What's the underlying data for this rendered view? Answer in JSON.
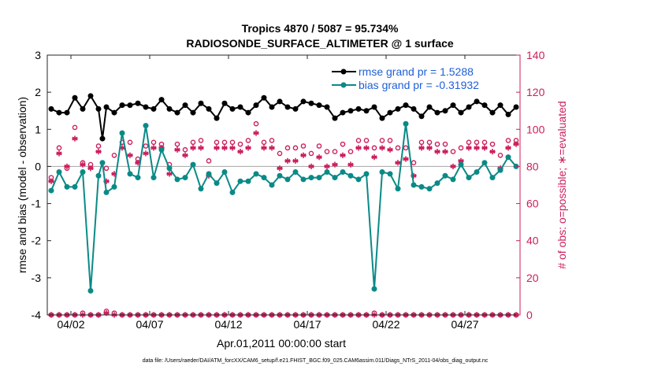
{
  "chart_data": {
    "type": "line",
    "title_line1": "Tropics 4870 / 5087 = 95.734%",
    "title_line2": "RADIOSONDE_SURFACE_ALTIMETER @ 1 surface",
    "xlabel": "Apr.01,2011 00:00:00 start",
    "ylabel_left": "rmse and bias (model - observation)",
    "ylabel_right": "# of obs: o=possible; ∗=evaluated",
    "footer": "data file: /Users/raeder/DAI/ATM_forcXX/CAM6_setup/f.e21.FHIST_BGC.f09_025.CAM6assim.011/Diags_NTrS_2011-04/obs_diag_output.nc",
    "xlim": [
      0.5,
      30.5
    ],
    "ylim_left": [
      -4,
      3
    ],
    "ylim_right": [
      0,
      140
    ],
    "x_ticks": [
      2,
      7,
      12,
      17,
      22,
      27
    ],
    "x_tick_labels": [
      "04/02",
      "04/07",
      "04/12",
      "04/17",
      "04/22",
      "04/27"
    ],
    "y_ticks_left": [
      -4,
      -3,
      -2,
      -1,
      0,
      1,
      2,
      3
    ],
    "y_ticks_right": [
      0,
      20,
      40,
      60,
      80,
      100,
      120,
      140
    ],
    "legend": [
      {
        "name": "rmse grand pr = 1.5288",
        "color": "#000000"
      },
      {
        "name": "bias grand pr = -0.31932",
        "color": "#0a8a87"
      }
    ],
    "colors": {
      "rmse": "#000000",
      "bias": "#0a8a87",
      "obs": "#cc1e5c",
      "legend_text": "#1f5fd6",
      "zero_line": "#b0b0b0"
    },
    "series": [
      {
        "name": "rmse",
        "x": [
          0.75,
          1.25,
          1.75,
          2.25,
          2.75,
          3.25,
          3.75,
          4.0,
          4.25,
          4.75,
          5.25,
          5.75,
          6.25,
          6.75,
          7.25,
          7.75,
          8.25,
          8.75,
          9.25,
          9.75,
          10.25,
          10.75,
          11.25,
          11.75,
          12.25,
          12.75,
          13.25,
          13.75,
          14.25,
          14.75,
          15.25,
          15.75,
          16.25,
          16.75,
          17.25,
          17.75,
          18.25,
          18.75,
          19.25,
          19.75,
          20.25,
          20.75,
          21.25,
          21.75,
          22.25,
          22.75,
          23.25,
          23.75,
          24.25,
          24.75,
          25.25,
          25.75,
          26.25,
          26.75,
          27.25,
          27.75,
          28.25,
          28.75,
          29.25,
          29.75,
          30.25
        ],
        "values": [
          1.55,
          1.45,
          1.45,
          1.85,
          1.55,
          1.9,
          1.55,
          0.75,
          1.6,
          1.45,
          1.65,
          1.65,
          1.7,
          1.6,
          1.55,
          1.8,
          1.55,
          1.45,
          1.65,
          1.45,
          1.7,
          1.55,
          1.3,
          1.7,
          1.55,
          1.6,
          1.45,
          1.65,
          1.85,
          1.6,
          1.75,
          1.6,
          1.55,
          1.75,
          1.7,
          1.65,
          1.6,
          1.3,
          1.45,
          1.5,
          1.55,
          1.5,
          1.6,
          1.3,
          1.45,
          1.55,
          1.65,
          1.55,
          1.35,
          1.6,
          1.45,
          1.5,
          1.65,
          1.45,
          1.6,
          1.75,
          1.65,
          1.45,
          1.65,
          1.4,
          1.6
        ]
      },
      {
        "name": "bias",
        "x": [
          0.75,
          1.25,
          1.75,
          2.25,
          2.75,
          3.25,
          3.75,
          4.0,
          4.25,
          4.75,
          5.25,
          5.75,
          6.25,
          6.75,
          7.25,
          7.75,
          8.25,
          8.75,
          9.25,
          9.75,
          10.25,
          10.75,
          11.25,
          11.75,
          12.25,
          12.75,
          13.25,
          13.75,
          14.25,
          14.75,
          15.25,
          15.75,
          16.25,
          16.75,
          17.25,
          17.75,
          18.25,
          18.75,
          19.25,
          19.75,
          20.25,
          20.75,
          21.25,
          21.75,
          22.25,
          22.75,
          23.25,
          23.75,
          24.25,
          24.75,
          25.25,
          25.75,
          26.25,
          26.75,
          27.25,
          27.75,
          28.25,
          28.75,
          29.25,
          29.75,
          30.25
        ],
        "values": [
          -0.65,
          -0.15,
          -0.55,
          -0.55,
          -0.15,
          -3.35,
          -0.25,
          0.1,
          -0.7,
          -0.55,
          0.9,
          -0.2,
          -0.3,
          1.1,
          -0.3,
          0.45,
          -0.05,
          -0.35,
          -0.3,
          0.05,
          -0.6,
          -0.2,
          -0.45,
          -0.15,
          -0.7,
          -0.4,
          -0.4,
          -0.2,
          -0.3,
          -0.5,
          -0.25,
          -0.35,
          -0.15,
          -0.35,
          -0.3,
          -0.3,
          -0.15,
          -0.3,
          -0.15,
          -0.25,
          -0.35,
          -0.2,
          -3.3,
          -0.15,
          -0.2,
          -0.6,
          1.15,
          -0.5,
          -0.55,
          -0.6,
          -0.45,
          -0.25,
          -0.35,
          0.05,
          -0.3,
          -0.15,
          0.1,
          -0.3,
          -0.1,
          0.25,
          0.0
        ]
      },
      {
        "name": "possible",
        "x": [
          0.75,
          1.25,
          1.75,
          2.25,
          2.75,
          3.25,
          3.75,
          4.25,
          4.75,
          5.25,
          5.75,
          6.25,
          6.75,
          7.25,
          7.75,
          8.25,
          8.75,
          9.25,
          9.75,
          10.25,
          10.75,
          11.25,
          11.75,
          12.25,
          12.75,
          13.25,
          13.75,
          14.25,
          14.75,
          15.25,
          15.75,
          16.25,
          16.75,
          17.25,
          17.75,
          18.25,
          18.75,
          19.25,
          19.75,
          20.25,
          20.75,
          21.25,
          21.75,
          22.25,
          22.75,
          23.25,
          23.75,
          24.25,
          24.75,
          25.25,
          25.75,
          26.25,
          26.75,
          27.25,
          27.75,
          28.25,
          28.75,
          29.25,
          29.75,
          30.25
        ],
        "values": [
          74,
          90,
          79,
          101,
          82,
          81,
          91,
          79,
          86,
          93,
          93,
          84,
          91,
          93,
          92,
          81,
          92,
          89,
          93,
          94,
          83,
          93,
          93,
          93,
          92,
          94,
          103,
          93,
          94,
          87,
          90,
          90,
          91,
          87,
          91,
          88,
          88,
          92,
          88,
          94,
          94,
          90,
          94,
          94,
          90,
          90,
          82,
          93,
          93,
          92,
          92,
          88,
          90,
          93,
          93,
          93,
          92,
          86,
          94,
          94
        ]
      },
      {
        "name": "evaluated",
        "x": [
          0.75,
          1.25,
          1.75,
          2.25,
          2.75,
          3.25,
          3.75,
          4.25,
          4.75,
          5.25,
          5.75,
          6.25,
          6.75,
          7.25,
          7.75,
          8.25,
          8.75,
          9.25,
          9.75,
          10.25,
          10.75,
          11.25,
          11.75,
          12.25,
          12.75,
          13.25,
          13.75,
          14.25,
          14.75,
          15.25,
          15.75,
          16.25,
          16.75,
          17.25,
          17.75,
          18.25,
          18.75,
          19.25,
          19.75,
          20.25,
          20.75,
          21.25,
          21.75,
          22.25,
          22.75,
          23.25,
          23.75,
          24.25,
          24.75,
          25.25,
          25.75,
          26.25,
          26.75,
          27.25,
          27.75,
          28.25,
          28.75,
          29.25,
          29.75,
          30.25
        ],
        "values": [
          72,
          87,
          80,
          95,
          81,
          79,
          88,
          72,
          76,
          90,
          86,
          82,
          87,
          90,
          90,
          76,
          89,
          86,
          90,
          90,
          75,
          90,
          90,
          90,
          88,
          90,
          98,
          90,
          90,
          79,
          83,
          83,
          86,
          80,
          85,
          80,
          81,
          86,
          81,
          90,
          90,
          85,
          90,
          89,
          82,
          84,
          75,
          90,
          90,
          88,
          88,
          80,
          83,
          90,
          90,
          90,
          88,
          79,
          90,
          92
        ]
      },
      {
        "name": "possible_baseline",
        "x": [
          0.75,
          1.25,
          1.75,
          2.25,
          2.75,
          3.25,
          3.75,
          4.25,
          4.75,
          5.25,
          5.75,
          6.25,
          6.75,
          7.25,
          7.75,
          8.25,
          8.75,
          9.25,
          9.75,
          10.25,
          10.75,
          11.25,
          11.75,
          12.25,
          12.75,
          13.25,
          13.75,
          14.25,
          14.75,
          15.25,
          15.75,
          16.25,
          16.75,
          17.25,
          17.75,
          18.25,
          18.75,
          19.25,
          19.75,
          20.25,
          20.75,
          21.25,
          21.75,
          22.25,
          22.75,
          23.25,
          23.75,
          24.25,
          24.75,
          25.25,
          25.75,
          26.25,
          26.75,
          27.25,
          27.75,
          28.25,
          28.75,
          29.25,
          29.75,
          30.25
        ],
        "values": [
          0,
          0,
          0,
          0,
          1,
          0,
          0,
          2,
          1,
          0,
          0,
          0,
          0,
          0,
          0,
          0,
          0,
          0,
          0,
          0,
          0,
          0,
          0,
          0,
          0,
          0,
          0,
          0,
          0,
          0,
          0,
          0,
          0,
          0,
          0,
          0,
          0,
          0,
          0,
          0,
          0,
          1,
          0,
          0,
          0,
          0,
          0,
          0,
          0,
          0,
          0,
          0,
          0,
          0,
          0,
          0,
          0,
          0,
          0,
          0
        ]
      },
      {
        "name": "evaluated_baseline",
        "x": [
          0.75,
          1.25,
          1.75,
          2.25,
          2.75,
          3.25,
          3.75,
          4.25,
          4.75,
          5.25,
          5.75,
          6.25,
          6.75,
          7.25,
          7.75,
          8.25,
          8.75,
          9.25,
          9.75,
          10.25,
          10.75,
          11.25,
          11.75,
          12.25,
          12.75,
          13.25,
          13.75,
          14.25,
          14.75,
          15.25,
          15.75,
          16.25,
          16.75,
          17.25,
          17.75,
          18.25,
          18.75,
          19.25,
          19.75,
          20.25,
          20.75,
          21.25,
          21.75,
          22.25,
          22.75,
          23.25,
          23.75,
          24.25,
          24.75,
          25.25,
          25.75,
          26.25,
          26.75,
          27.25,
          27.75,
          28.25,
          28.75,
          29.25,
          29.75,
          30.25
        ],
        "values": [
          0,
          0,
          0,
          0,
          0,
          0,
          0,
          1,
          0,
          0,
          0,
          0,
          0,
          0,
          0,
          0,
          0,
          0,
          0,
          0,
          0,
          0,
          0,
          0,
          0,
          0,
          0,
          0,
          0,
          0,
          0,
          0,
          0,
          0,
          0,
          0,
          0,
          0,
          0,
          0,
          0,
          0,
          0,
          0,
          0,
          0,
          0,
          0,
          0,
          0,
          0,
          0,
          0,
          0,
          0,
          0,
          0,
          0,
          0,
          0
        ]
      }
    ]
  }
}
